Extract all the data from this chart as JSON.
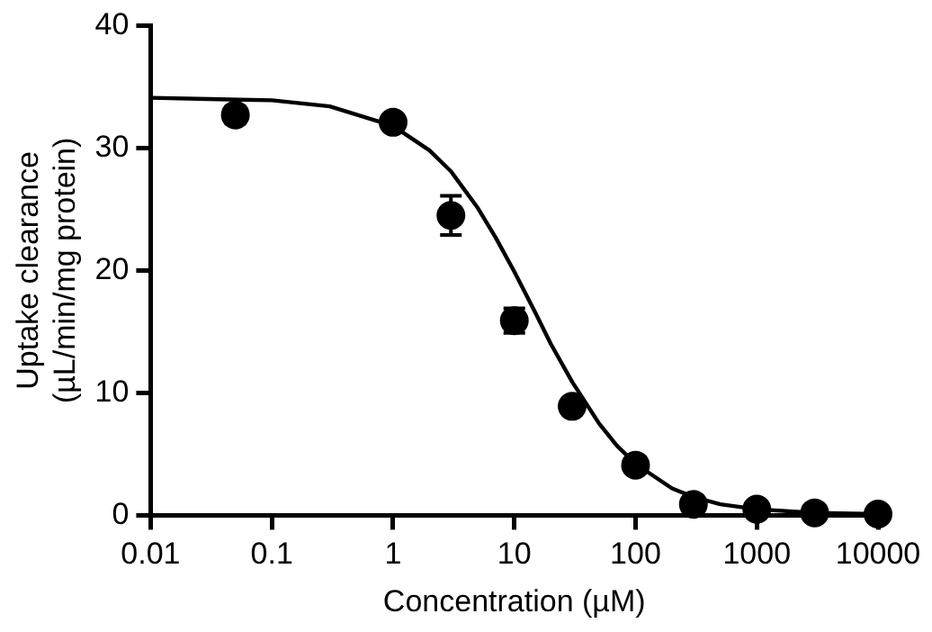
{
  "chart_data": {
    "type": "scatter",
    "xlabel": "Concentration (µM)",
    "ylabel": "Uptake clearance\n(µL/min/mg protein)",
    "log": "x",
    "xlim": [
      0.01,
      10000
    ],
    "xticks": [
      0.01,
      0.1,
      1,
      10,
      100,
      1000,
      10000
    ],
    "ylim": [
      0,
      40
    ],
    "yticks": [
      0,
      10,
      20,
      30,
      40
    ],
    "grid": false,
    "legend": false,
    "series": [
      {
        "color": "#000000",
        "marker": "circle",
        "x": [
          0.05,
          1,
          3,
          10,
          30,
          100,
          300,
          1000,
          3000,
          10000
        ],
        "values": [
          32.7,
          32.1,
          24.5,
          15.9,
          8.9,
          4.1,
          0.9,
          0.5,
          0.2,
          0.1
        ],
        "errors": [
          0.7,
          null,
          1.6,
          1.0,
          null,
          null,
          null,
          null,
          null,
          null
        ]
      },
      {
        "type": "line",
        "color": "#000000",
        "marker": "none",
        "line_style": "solid",
        "x": [
          0.01,
          0.03,
          0.1,
          0.3,
          1,
          2,
          3,
          5,
          7,
          10,
          15,
          20,
          30,
          50,
          70,
          100,
          200,
          300,
          500,
          1000,
          3000,
          10000
        ],
        "values": [
          34.1,
          34.0,
          33.9,
          33.4,
          31.8,
          29.8,
          28.1,
          25.1,
          22.7,
          19.9,
          16.5,
          14.0,
          10.9,
          7.5,
          5.7,
          4.2,
          2.2,
          1.5,
          0.9,
          0.5,
          0.2,
          0.1
        ]
      }
    ]
  }
}
